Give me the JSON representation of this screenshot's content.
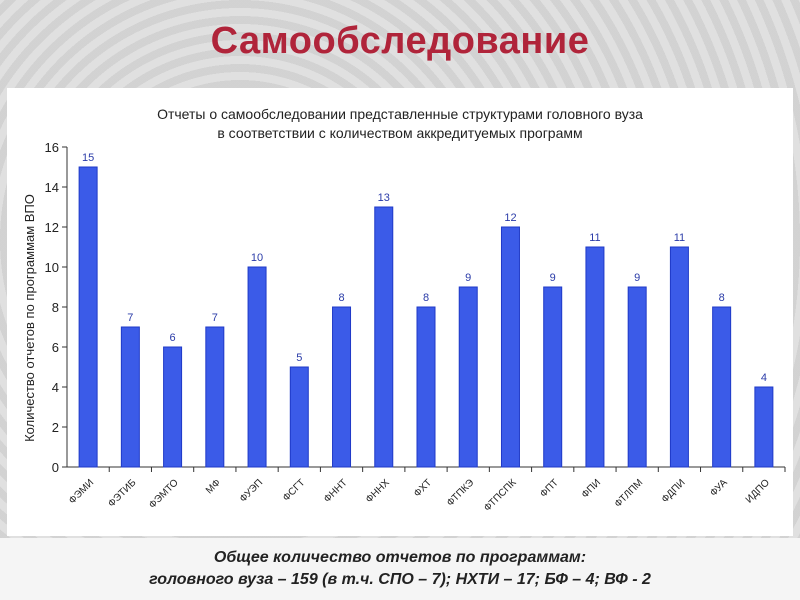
{
  "slide": {
    "title": "Самообследование",
    "footer_line1": "Общее количество отчетов по программам:",
    "footer_line2": "головного вуза – 159 (в т.ч. СПО – 7); НХТИ – 17; БФ – 4; ВФ - 2"
  },
  "colors": {
    "bar": "#3b5be8",
    "bar_edge": "#1f3ac7",
    "title": "#b0243a",
    "data_label": "#2a3ba8"
  },
  "chart_data": {
    "type": "bar",
    "title_line1": "Отчеты о самообследовании представленные структурами головного вуза",
    "title_line2": "в соответствии с количеством аккредитуемых программ",
    "xlabel": "",
    "ylabel": "Количество отчетов по программам ВПО",
    "ylim": [
      0,
      16
    ],
    "yticks": [
      0,
      2,
      4,
      6,
      8,
      10,
      12,
      14,
      16
    ],
    "grid": false,
    "categories": [
      "ФЭМИ",
      "ФЭТИБ",
      "ФЭМТО",
      "МФ",
      "ФУЭП",
      "ФСГТ",
      "ФННТ",
      "ФННХ",
      "ФХТ",
      "ФТПКЭ",
      "ФТПСПК",
      "ФПТ",
      "ФПИ",
      "ФТЛПМ",
      "ФДПИ",
      "ФУА",
      "ИДПО"
    ],
    "values": [
      15,
      7,
      6,
      7,
      10,
      5,
      8,
      13,
      8,
      9,
      12,
      9,
      11,
      9,
      11,
      8,
      4
    ]
  }
}
